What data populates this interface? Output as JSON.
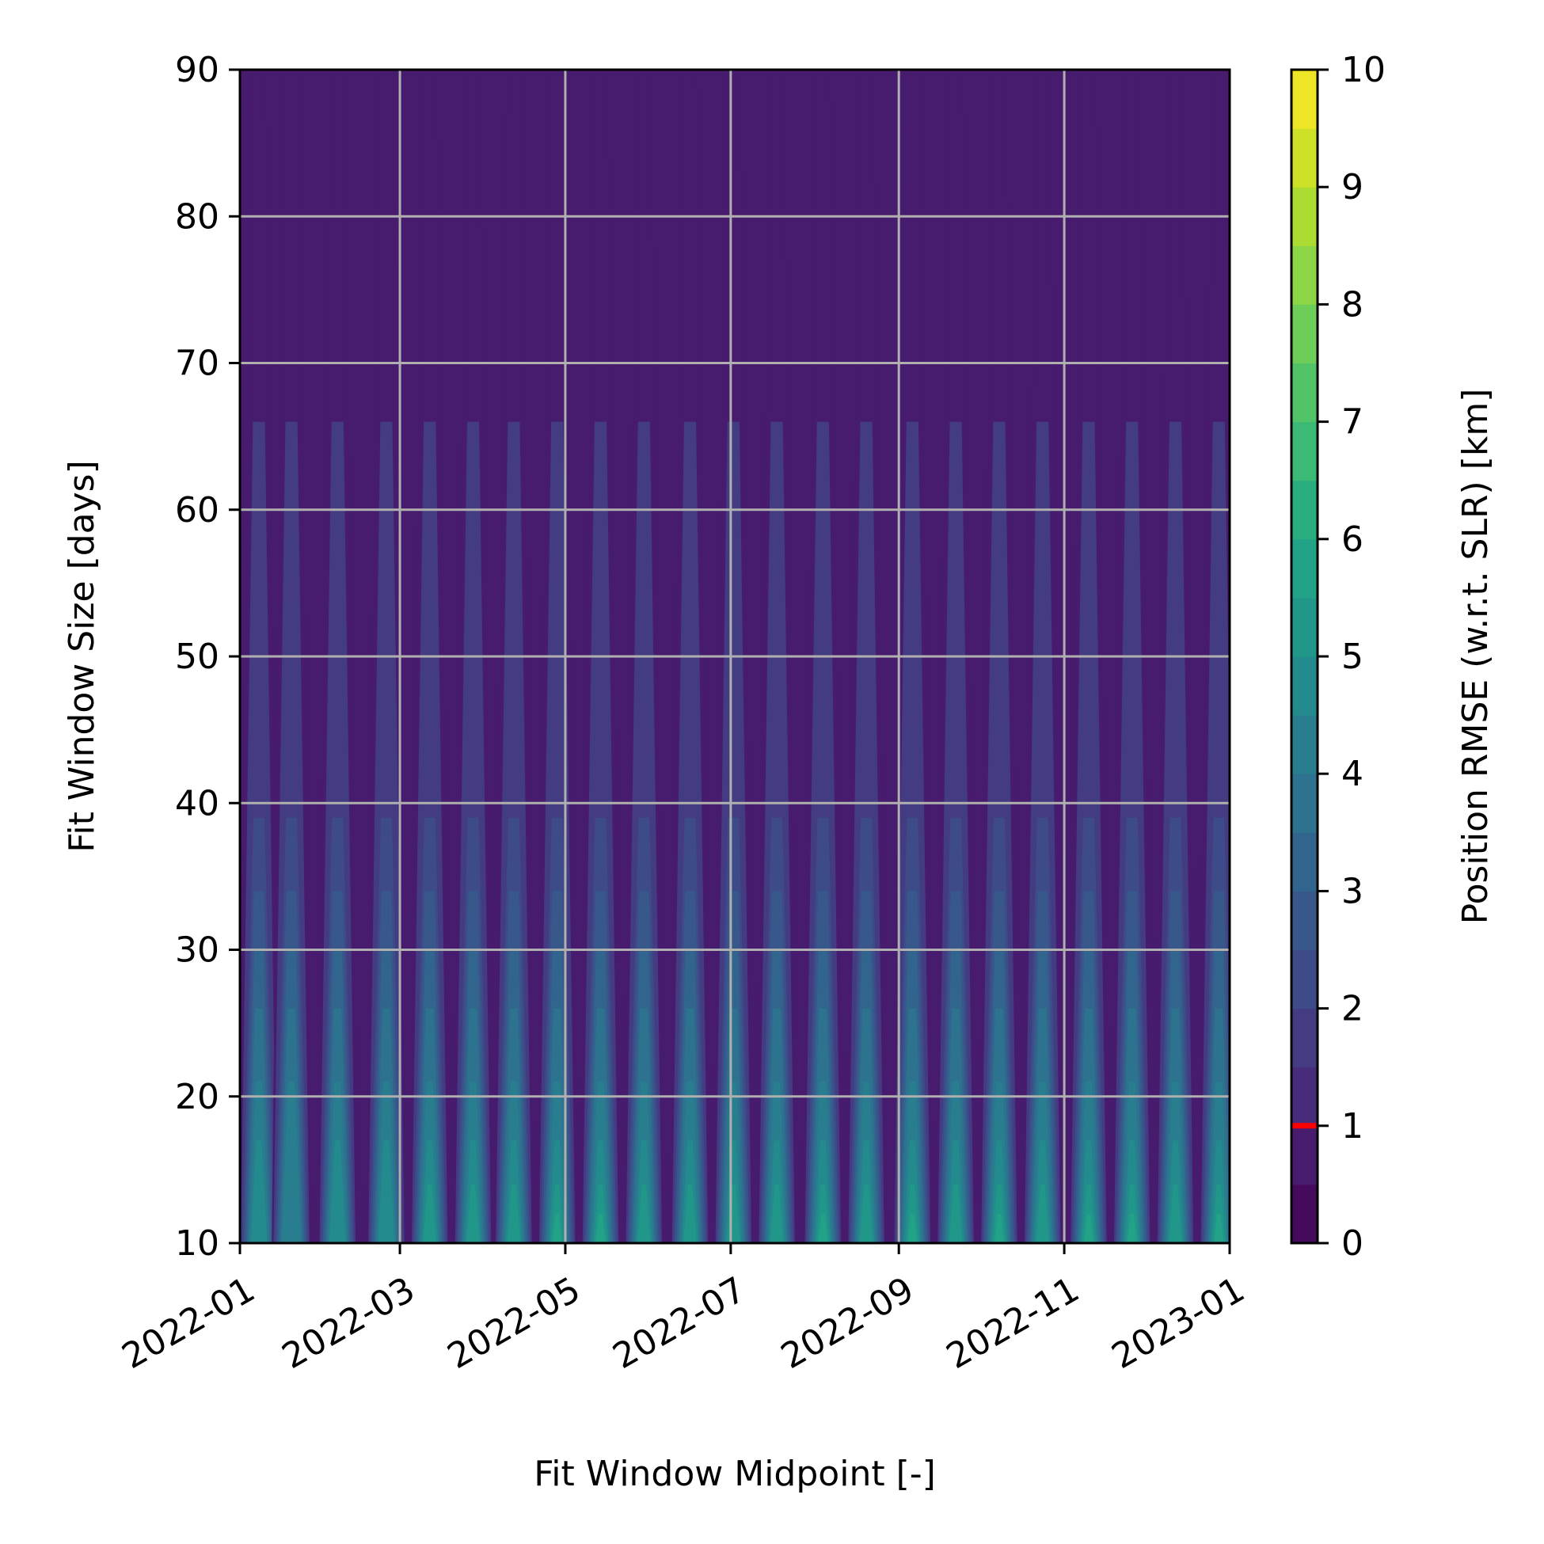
{
  "chart_data": {
    "type": "heatmap",
    "subtype": "filled-contour",
    "xlabel": "Fit Window Midpoint [-]",
    "ylabel": "Fit Window Size [days]",
    "xlim": [
      "2022-01-01",
      "2023-01-01"
    ],
    "ylim": [
      10,
      90
    ],
    "x_tick_labels": [
      "2022-01",
      "2022-03",
      "2022-05",
      "2022-07",
      "2022-09",
      "2022-11",
      "2023-01"
    ],
    "x_ticks": [
      "2022-01-01",
      "2022-03-01",
      "2022-05-01",
      "2022-07-01",
      "2022-09-01",
      "2022-11-01",
      "2023-01-01"
    ],
    "y_ticks": [
      10,
      20,
      30,
      40,
      50,
      60,
      70,
      80,
      90
    ],
    "grid": true,
    "colorbar": {
      "label": "Position RMSE (w.r.t. SLR) [km]",
      "range": [
        0,
        10
      ],
      "ticks": [
        0,
        1,
        2,
        3,
        4,
        5,
        6,
        7,
        8,
        9,
        10
      ],
      "levels": 20,
      "colormap": "viridis",
      "highlight_value": 1,
      "highlight_color": "#ff0000"
    },
    "oscillation_peaks": [
      {
        "midpoint": "2022-01-08",
        "peak_rmse": 5.0
      },
      {
        "midpoint": "2022-01-20",
        "peak_rmse": 4.6
      },
      {
        "midpoint": "2022-02-06",
        "peak_rmse": 5.0
      },
      {
        "midpoint": "2022-02-24",
        "peak_rmse": 5.3
      },
      {
        "midpoint": "2022-03-12",
        "peak_rmse": 5.5
      },
      {
        "midpoint": "2022-03-28",
        "peak_rmse": 5.7
      },
      {
        "midpoint": "2022-04-12",
        "peak_rmse": 5.4
      },
      {
        "midpoint": "2022-04-28",
        "peak_rmse": 6.1
      },
      {
        "midpoint": "2022-05-14",
        "peak_rmse": 6.2
      },
      {
        "midpoint": "2022-05-30",
        "peak_rmse": 5.7
      },
      {
        "midpoint": "2022-06-16",
        "peak_rmse": 5.6
      },
      {
        "midpoint": "2022-07-02",
        "peak_rmse": 5.5
      },
      {
        "midpoint": "2022-07-18",
        "peak_rmse": 5.9
      },
      {
        "midpoint": "2022-08-04",
        "peak_rmse": 6.0
      },
      {
        "midpoint": "2022-08-20",
        "peak_rmse": 5.8
      },
      {
        "midpoint": "2022-09-06",
        "peak_rmse": 6.2
      },
      {
        "midpoint": "2022-09-22",
        "peak_rmse": 5.9
      },
      {
        "midpoint": "2022-10-08",
        "peak_rmse": 6.4
      },
      {
        "midpoint": "2022-10-24",
        "peak_rmse": 5.8
      },
      {
        "midpoint": "2022-11-10",
        "peak_rmse": 6.1
      },
      {
        "midpoint": "2022-11-26",
        "peak_rmse": 6.2
      },
      {
        "midpoint": "2022-12-12",
        "peak_rmse": 5.9
      },
      {
        "midpoint": "2022-12-28",
        "peak_rmse": 6.1
      }
    ],
    "background_rmse_long_windows": 0.5
  }
}
